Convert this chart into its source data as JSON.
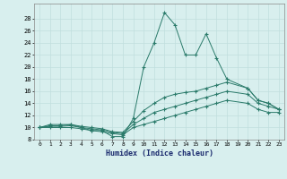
{
  "xlabel": "Humidex (Indice chaleur)",
  "background_color": "#d8efee",
  "line_color": "#2a7a6a",
  "xlim": [
    -0.5,
    23.5
  ],
  "ylim": [
    8,
    30
  ],
  "yticks": [
    8,
    10,
    12,
    14,
    16,
    18,
    20,
    22,
    24,
    26,
    28
  ],
  "xticks": [
    0,
    1,
    2,
    3,
    4,
    5,
    6,
    7,
    8,
    9,
    10,
    11,
    12,
    13,
    14,
    15,
    16,
    17,
    18,
    19,
    20,
    21,
    22,
    23
  ],
  "series": [
    {
      "x": [
        0,
        1,
        2,
        3,
        4,
        5,
        6,
        7,
        8,
        9,
        10,
        11,
        12,
        13,
        14,
        15,
        16,
        17,
        18,
        20,
        21,
        22,
        23
      ],
      "y": [
        10.0,
        10.5,
        10.5,
        10.5,
        10.0,
        9.5,
        9.5,
        8.5,
        8.5,
        11.5,
        20.0,
        24.0,
        29.0,
        27.0,
        22.0,
        22.0,
        25.5,
        21.5,
        18.0,
        16.5,
        14.5,
        14.0,
        13.0
      ]
    },
    {
      "x": [
        0,
        1,
        2,
        3,
        4,
        5,
        6,
        7,
        8,
        9,
        10,
        11,
        12,
        13,
        14,
        15,
        16,
        17,
        18,
        20,
        21,
        22,
        23
      ],
      "y": [
        10.0,
        10.3,
        10.3,
        10.5,
        10.2,
        10.0,
        9.8,
        9.3,
        9.2,
        11.0,
        12.8,
        14.0,
        15.0,
        15.5,
        15.8,
        16.0,
        16.5,
        17.0,
        17.5,
        16.5,
        14.5,
        14.0,
        13.0
      ]
    },
    {
      "x": [
        0,
        1,
        2,
        3,
        4,
        5,
        6,
        7,
        8,
        9,
        10,
        11,
        12,
        13,
        14,
        15,
        16,
        17,
        18,
        20,
        21,
        22,
        23
      ],
      "y": [
        10.0,
        10.2,
        10.2,
        10.3,
        10.0,
        9.8,
        9.6,
        9.2,
        9.0,
        10.5,
        11.5,
        12.5,
        13.0,
        13.5,
        14.0,
        14.5,
        15.0,
        15.5,
        16.0,
        15.5,
        14.0,
        13.5,
        13.0
      ]
    },
    {
      "x": [
        0,
        1,
        2,
        3,
        4,
        5,
        6,
        7,
        8,
        9,
        10,
        11,
        12,
        13,
        14,
        15,
        16,
        17,
        18,
        20,
        21,
        22,
        23
      ],
      "y": [
        10.0,
        10.0,
        10.0,
        10.0,
        9.8,
        9.5,
        9.3,
        9.0,
        8.8,
        10.0,
        10.5,
        11.0,
        11.5,
        12.0,
        12.5,
        13.0,
        13.5,
        14.0,
        14.5,
        14.0,
        13.0,
        12.5,
        12.5
      ]
    }
  ]
}
